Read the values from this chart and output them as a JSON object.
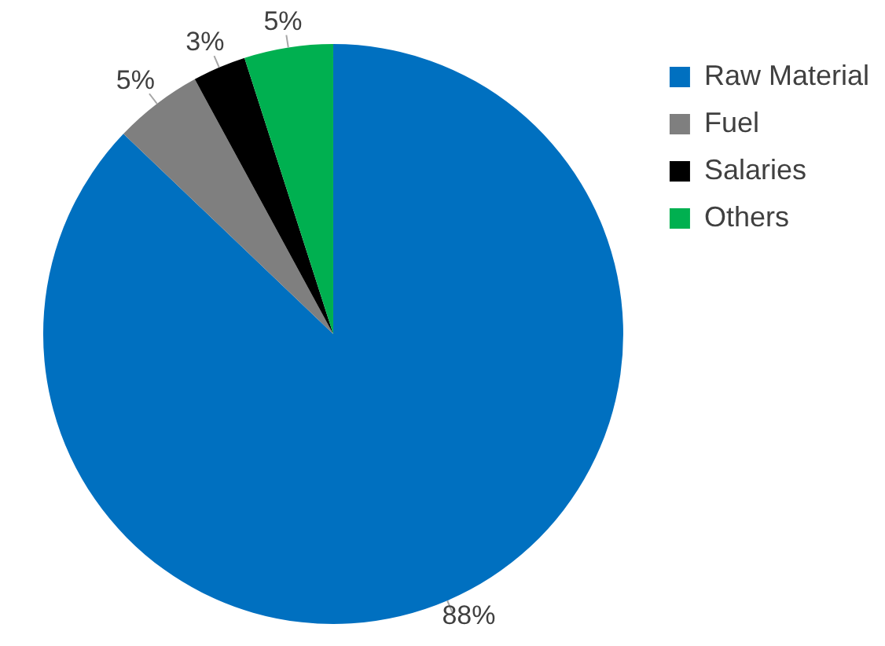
{
  "chart_data": {
    "type": "pie",
    "categories": [
      "Raw Material",
      "Fuel",
      "Salaries",
      "Others"
    ],
    "values": [
      88,
      5,
      3,
      5
    ],
    "colors": [
      "#0070c0",
      "#7f7f7f",
      "#000000",
      "#00b050"
    ],
    "value_labels": [
      "88%",
      "5%",
      "3%",
      "5%"
    ],
    "legend": "top right"
  }
}
